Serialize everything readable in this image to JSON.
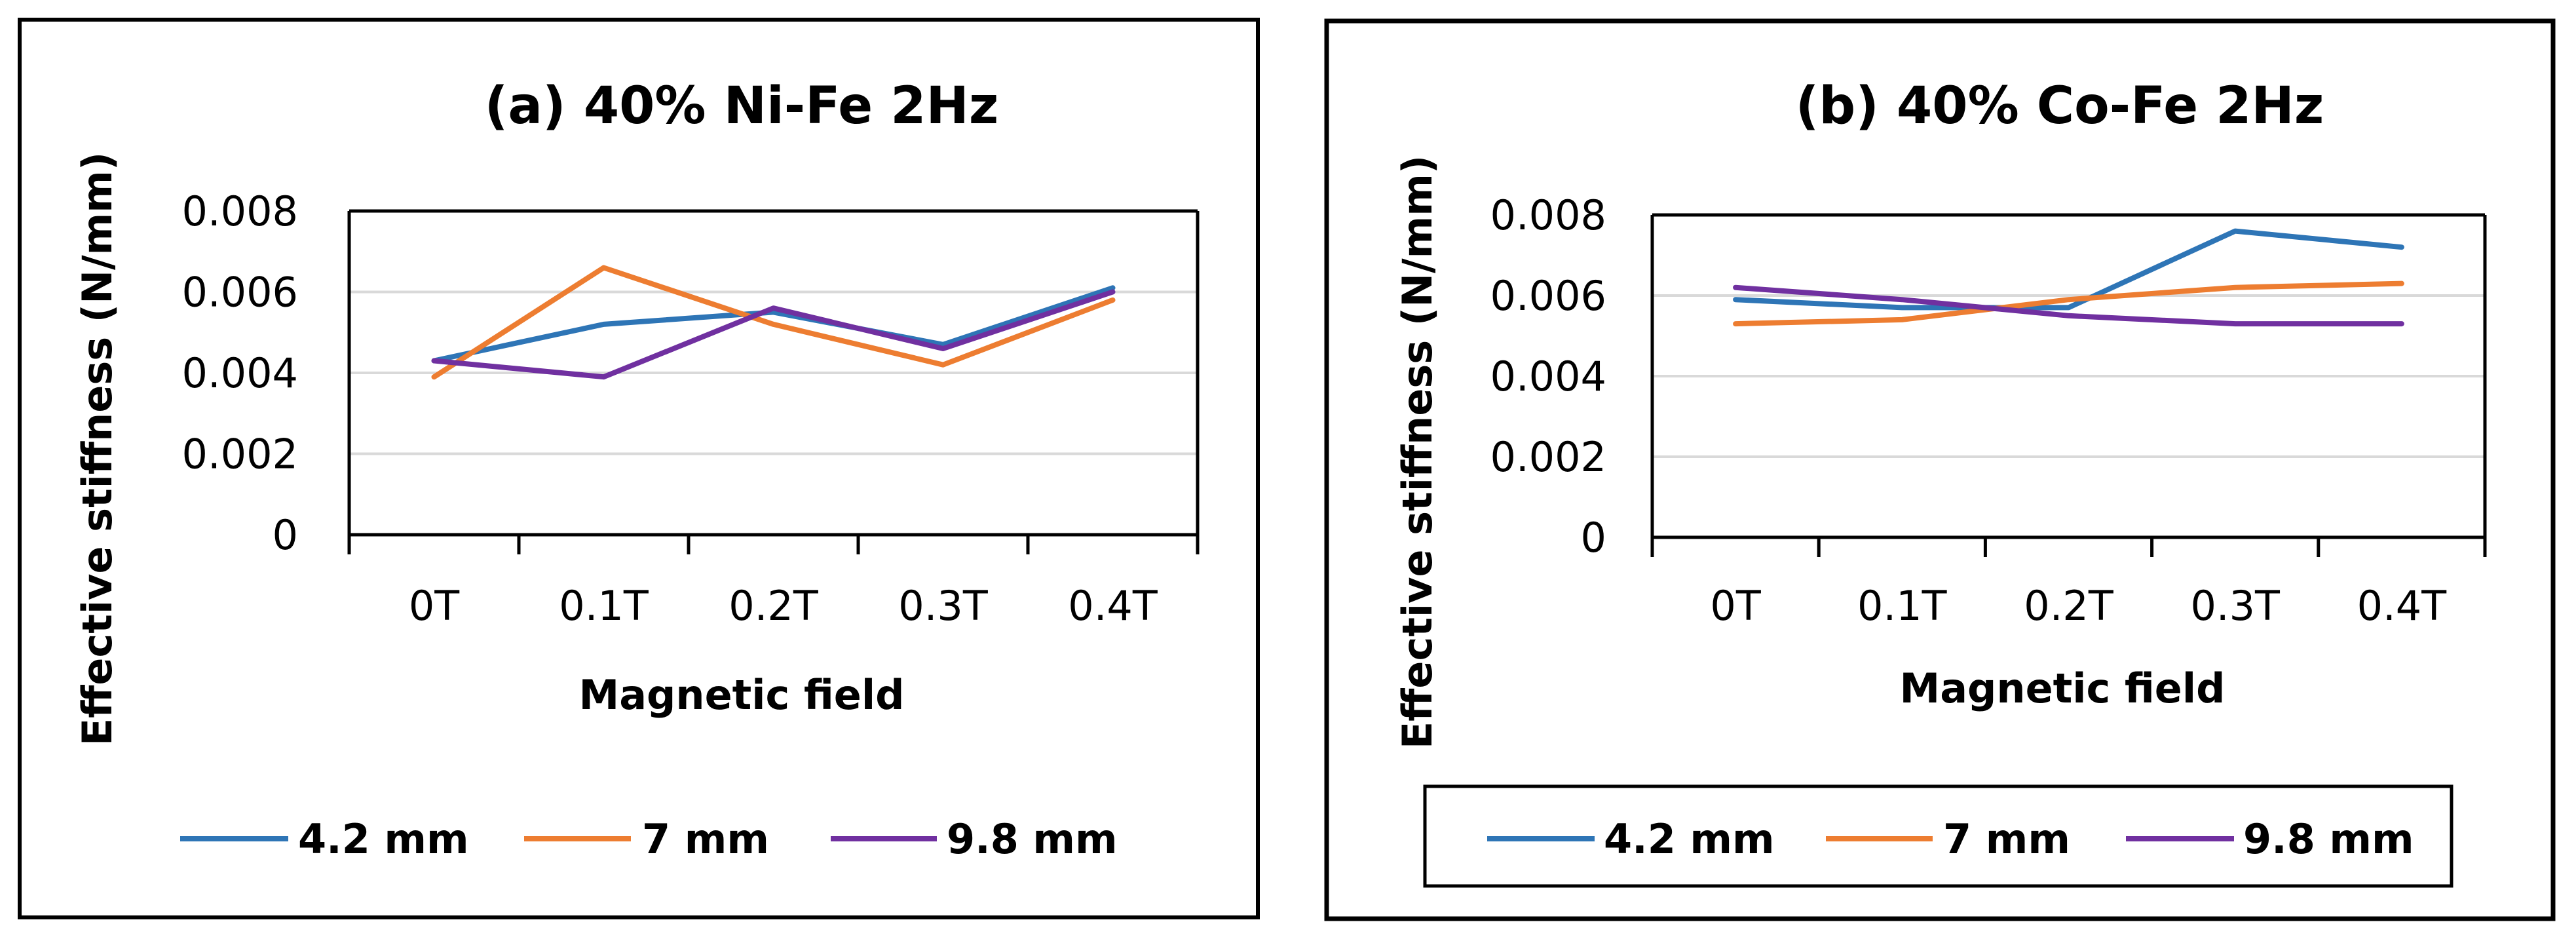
{
  "chart_data": [
    {
      "type": "line",
      "title": "(a) 40% Ni-Fe 2Hz",
      "xlabel": "Magnetic field",
      "ylabel": "Effective stiffness (N/mm)",
      "categories": [
        "0T",
        "0.1T",
        "0.2T",
        "0.3T",
        "0.4T"
      ],
      "ylim": [
        0,
        0.008
      ],
      "yticks": [
        "0",
        "0.002",
        "0.004",
        "0.006",
        "0.008"
      ],
      "grid": true,
      "legend_position": "bottom",
      "series": [
        {
          "name": "4.2 mm",
          "color": "#2E75B6",
          "values": [
            0.0043,
            0.0052,
            0.0055,
            0.0047,
            0.0061
          ]
        },
        {
          "name": "7 mm",
          "color": "#ED7D31",
          "values": [
            0.0039,
            0.0066,
            0.0052,
            0.0042,
            0.0058
          ]
        },
        {
          "name": "9.8 mm",
          "color": "#7030A0",
          "values": [
            0.0043,
            0.0039,
            0.0056,
            0.0046,
            0.006
          ]
        }
      ]
    },
    {
      "type": "line",
      "title": "(b) 40% Co-Fe 2Hz",
      "xlabel": "Magnetic field",
      "ylabel": "Effective stiffness (N/mm)",
      "categories": [
        "0T",
        "0.1T",
        "0.2T",
        "0.3T",
        "0.4T"
      ],
      "ylim": [
        0,
        0.008
      ],
      "yticks": [
        "0",
        "0.002",
        "0.004",
        "0.006",
        "0.008"
      ],
      "grid": true,
      "legend_position": "bottom",
      "series": [
        {
          "name": "4.2 mm",
          "color": "#2E75B6",
          "values": [
            0.0059,
            0.0057,
            0.0057,
            0.0076,
            0.0072
          ]
        },
        {
          "name": "7 mm",
          "color": "#ED7D31",
          "values": [
            0.0053,
            0.0054,
            0.0059,
            0.0062,
            0.0063
          ]
        },
        {
          "name": "9.8 mm",
          "color": "#7030A0",
          "values": [
            0.0062,
            0.0059,
            0.0055,
            0.0053,
            0.0053
          ]
        }
      ]
    }
  ]
}
